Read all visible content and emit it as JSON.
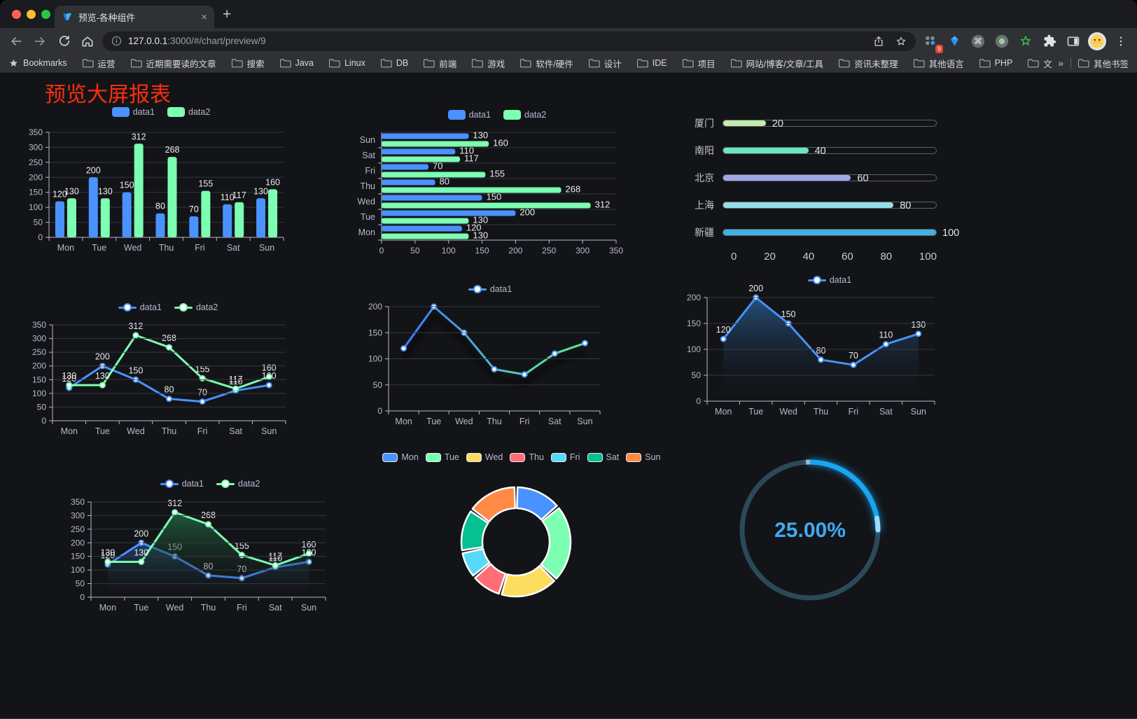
{
  "window": {
    "tab_title": "预览-各种组件",
    "close_tab": "×",
    "new_tab": "+"
  },
  "toolbar": {
    "url_host": "127.0.0.1",
    "url_rest": ":3000/#/chart/preview/9"
  },
  "extensions": {
    "badge_count": "9"
  },
  "bookmarks": {
    "lead_label": "Bookmarks",
    "items": [
      "运营",
      "近期需要读的文章",
      "搜索",
      "Java",
      "Linux",
      "DB",
      "前端",
      "游戏",
      "软件/硬件",
      "设计",
      "IDE",
      "项目",
      "网站/博客/文章/工具",
      "资讯未整理",
      "其他语言",
      "PHP",
      "文件服务器"
    ],
    "overflow_chevron": "»",
    "other_label": "其他书签"
  },
  "page": {
    "title": "预览大屏报表"
  },
  "colors": {
    "palette_dark": [
      "#4992ff",
      "#7cffb2",
      "#fddd60",
      "#ff6e76",
      "#58d9f9",
      "#05c091",
      "#ff8a45"
    ],
    "axis": "#b9b8ce",
    "grid": "#33363e",
    "value_label": "#ececec",
    "title_red": "#fc2e0e",
    "gauge_blue": "#18a6f2"
  },
  "chart_data": [
    {
      "id": "bar-vertical",
      "type": "bar",
      "categories": [
        "Mon",
        "Tue",
        "Wed",
        "Thu",
        "Fri",
        "Sat",
        "Sun"
      ],
      "series": [
        {
          "name": "data1",
          "color": "#4992ff",
          "values": [
            120,
            200,
            150,
            80,
            70,
            110,
            130
          ]
        },
        {
          "name": "data2",
          "color": "#7cffb2",
          "values": [
            130,
            130,
            312,
            268,
            155,
            117,
            160
          ]
        }
      ],
      "ylim": [
        0,
        350
      ],
      "ytick_step": 50,
      "legend_position": "top",
      "grid": true,
      "labels": true
    },
    {
      "id": "bar-horizontal",
      "type": "hbar",
      "categories": [
        "Mon",
        "Tue",
        "Wed",
        "Thu",
        "Fri",
        "Sat",
        "Sun"
      ],
      "series": [
        {
          "name": "data1",
          "color": "#4992ff",
          "values": [
            120,
            200,
            150,
            80,
            70,
            110,
            130
          ]
        },
        {
          "name": "data2",
          "color": "#7cffb2",
          "values": [
            130,
            130,
            312,
            268,
            155,
            117,
            160
          ]
        }
      ],
      "xlim": [
        0,
        350
      ],
      "xtick_step": 50,
      "legend_position": "top",
      "labels": true
    },
    {
      "id": "progress-bars",
      "type": "bar",
      "max": 100,
      "axis_ticks": [
        0,
        20,
        40,
        60,
        80,
        100
      ],
      "items": [
        {
          "label": "厦门",
          "value": 20,
          "color": "#c4ebad"
        },
        {
          "label": "南阳",
          "value": 40,
          "color": "#6be6c1"
        },
        {
          "label": "北京",
          "value": 60,
          "color": "#a0a7e6"
        },
        {
          "label": "上海",
          "value": 80,
          "color": "#96dee8"
        },
        {
          "label": "新疆",
          "value": 100,
          "color": "#3fb1e3"
        }
      ]
    },
    {
      "id": "line-two-series",
      "type": "line",
      "categories": [
        "Mon",
        "Tue",
        "Wed",
        "Thu",
        "Fri",
        "Sat",
        "Sun"
      ],
      "series": [
        {
          "name": "data1",
          "color": "#4992ff",
          "values": [
            120,
            200,
            150,
            80,
            70,
            110,
            130
          ]
        },
        {
          "name": "data2",
          "color": "#7cffb2",
          "values": [
            130,
            130,
            312,
            268,
            155,
            117,
            160
          ]
        }
      ],
      "ylim": [
        0,
        350
      ],
      "ytick_step": 50,
      "labels": true
    },
    {
      "id": "line-gradient",
      "type": "line",
      "categories": [
        "Mon",
        "Tue",
        "Wed",
        "Thu",
        "Fri",
        "Sat",
        "Sun"
      ],
      "series": [
        {
          "name": "data1",
          "color": "#4f9cf5",
          "gradient": [
            "#3f7ef2",
            "#46a0e8",
            "#55d3ae",
            "#5ee6a0"
          ],
          "values": [
            120,
            200,
            150,
            80,
            70,
            110,
            130
          ]
        }
      ],
      "ylim": [
        0,
        200
      ],
      "ytick_step": 50,
      "labels": false,
      "shadow": true
    },
    {
      "id": "area-single",
      "type": "area",
      "categories": [
        "Mon",
        "Tue",
        "Wed",
        "Thu",
        "Fri",
        "Sat",
        "Sun"
      ],
      "series": [
        {
          "name": "data1",
          "color": "#4693f8",
          "area_top": "rgba(39,84,133,0.95)",
          "values": [
            120,
            200,
            150,
            80,
            70,
            110,
            130
          ]
        }
      ],
      "ylim": [
        0,
        200
      ],
      "ytick_step": 50,
      "labels": true
    },
    {
      "id": "area-double",
      "type": "area",
      "categories": [
        "Mon",
        "Tue",
        "Wed",
        "Thu",
        "Fri",
        "Sat",
        "Sun"
      ],
      "series": [
        {
          "name": "data1",
          "color": "#4992ff",
          "area_top": "rgba(30,70,115,0.9)",
          "values": [
            120,
            200,
            150,
            80,
            70,
            110,
            130
          ]
        },
        {
          "name": "data2",
          "color": "#7cffb2",
          "area_top": "rgba(36,104,66,0.85)",
          "values": [
            130,
            130,
            312,
            268,
            155,
            117,
            160
          ]
        }
      ],
      "ylim": [
        0,
        350
      ],
      "ytick_step": 50,
      "labels": true
    },
    {
      "id": "donut",
      "type": "pie",
      "items": [
        {
          "label": "Mon",
          "value": 120,
          "color": "#4992ff"
        },
        {
          "label": "Tue",
          "value": 200,
          "color": "#7cffb2"
        },
        {
          "label": "Wed",
          "value": 150,
          "color": "#fddd60"
        },
        {
          "label": "Thu",
          "value": 80,
          "color": "#ff6e76"
        },
        {
          "label": "Fri",
          "value": 70,
          "color": "#58d9f9"
        },
        {
          "label": "Sat",
          "value": 110,
          "color": "#05c091"
        },
        {
          "label": "Sun",
          "value": 130,
          "color": "#ff8a45"
        }
      ]
    },
    {
      "id": "gauge",
      "type": "gauge",
      "value": 25,
      "max": 100,
      "label": "25.00%",
      "color": "#18a6f2",
      "track_color": "#2b4a57",
      "text_color": "#40a9f3"
    }
  ]
}
